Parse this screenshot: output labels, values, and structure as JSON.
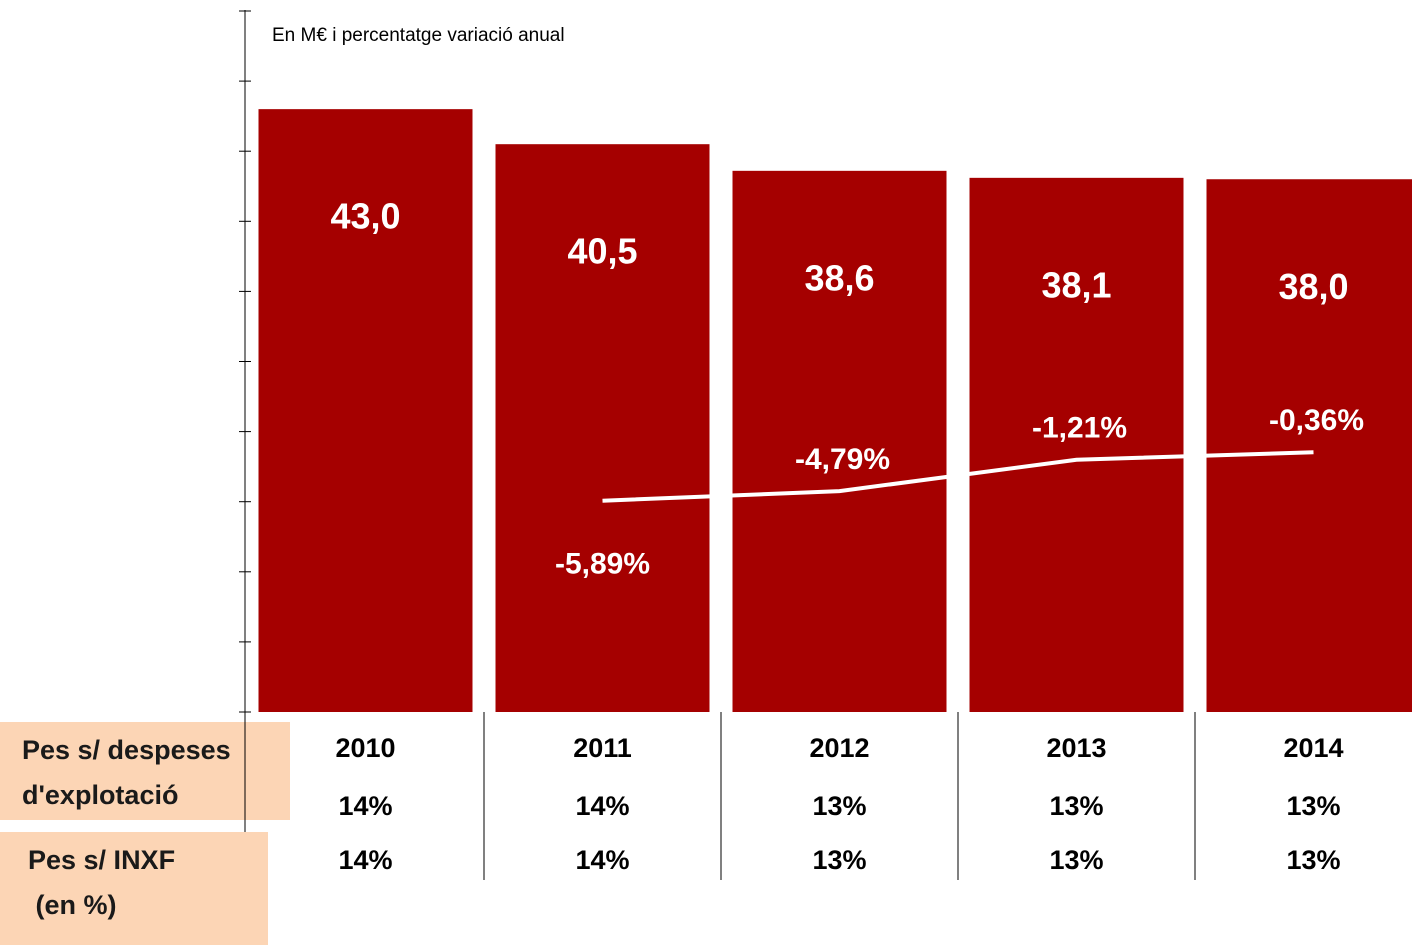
{
  "chart_data": {
    "type": "bar",
    "subtitle": "En M€ i percentatge variació anual",
    "categories": [
      "2010",
      "2011",
      "2012",
      "2013",
      "2014"
    ],
    "values": [
      43.0,
      40.5,
      38.6,
      38.1,
      38.0
    ],
    "value_labels": [
      "43,0",
      "40,5",
      "38,6",
      "38,1",
      "38,0"
    ],
    "color": "#a50000",
    "ylim": [
      0,
      50
    ],
    "yticks": [
      0,
      5,
      10,
      15,
      20,
      25,
      30,
      35,
      40,
      45,
      50
    ],
    "line": {
      "type": "line",
      "axis": "y2",
      "color": "#ffffff",
      "values": [
        null,
        -5.89,
        -4.79,
        -1.21,
        -0.36
      ],
      "value_labels": [
        null,
        "-5,89%",
        "-4,79%",
        "-1,21%",
        "-0,36%"
      ]
    },
    "y2lim": [
      -30,
      50
    ]
  },
  "table": {
    "row_headers": [
      [
        "Pes s/ despeses",
        "d'explotació"
      ],
      [
        "Pes s/ INXF",
        " (en %)"
      ]
    ],
    "rows": [
      [
        "14%",
        "14%",
        "13%",
        "13%",
        "13%"
      ],
      [
        "14%",
        "14%",
        "13%",
        "13%",
        "13%"
      ]
    ]
  }
}
